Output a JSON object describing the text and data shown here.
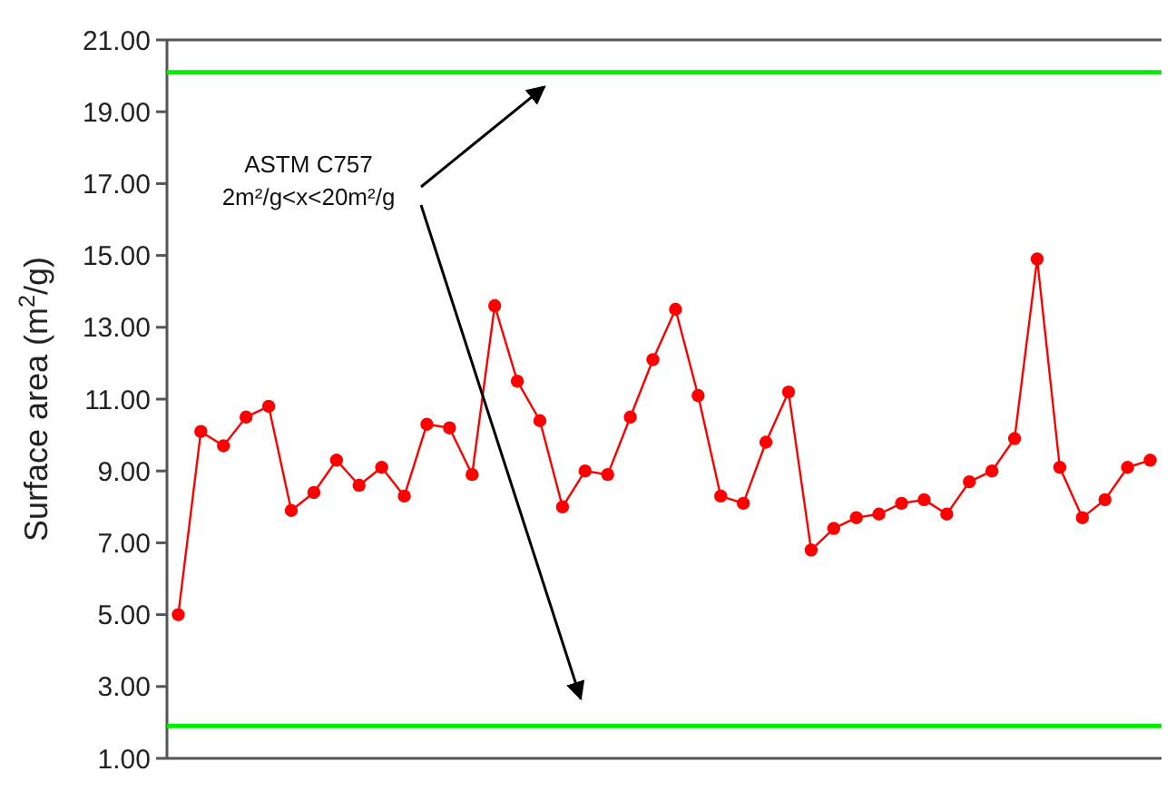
{
  "chart_data": {
    "type": "line",
    "ylabel": "Surface area (m$^{2}$/g)",
    "categories": [
      null,
      null,
      null,
      null,
      null,
      null,
      null,
      null,
      null,
      null,
      null,
      null,
      null,
      null,
      null,
      null,
      null,
      null,
      null,
      null,
      null,
      null,
      null,
      null,
      null,
      null,
      null,
      null,
      null,
      null,
      null,
      null,
      null,
      null,
      null,
      null,
      null,
      null,
      null,
      null,
      null,
      null,
      null,
      null
    ],
    "series": [
      {
        "color": "#ff0000",
        "values": [
          5.0,
          10.1,
          9.7,
          10.5,
          10.8,
          7.9,
          8.4,
          9.3,
          8.6,
          9.1,
          8.3,
          10.3,
          10.2,
          8.9,
          13.6,
          11.5,
          10.4,
          8.0,
          9.0,
          8.9,
          10.5,
          12.1,
          13.5,
          11.1,
          8.3,
          8.1,
          9.8,
          11.2,
          6.8,
          7.4,
          7.7,
          7.8,
          8.1,
          8.2,
          7.8,
          8.7,
          9.0,
          9.9,
          14.9,
          9.1,
          7.7,
          8.2,
          9.1,
          9.3
        ]
      }
    ],
    "ylim": [
      1,
      21
    ],
    "yticks": [
      {
        "value": 1,
        "label": "1.00"
      },
      {
        "value": 3,
        "label": "3.00"
      },
      {
        "value": 5,
        "label": "5.00"
      },
      {
        "value": 7,
        "label": "7.00"
      },
      {
        "value": 9,
        "label": "9.00"
      },
      {
        "value": 11,
        "label": "11.00"
      },
      {
        "value": 13,
        "label": "13.00"
      },
      {
        "value": 15,
        "label": "15.00"
      },
      {
        "value": 17,
        "label": "17.00"
      },
      {
        "value": 19,
        "label": "19.00"
      },
      {
        "value": 21,
        "label": "21.00"
      }
    ],
    "ref_lines": [
      {
        "axis": "y",
        "value": 20.1,
        "color": "#00ee00"
      },
      {
        "axis": "y",
        "value": 1.9,
        "color": "#00ee00"
      }
    ],
    "annotations": [
      "ASTM C757",
      "2m²/g<x<20m²/g"
    ],
    "marker": "circle",
    "grid": false
  }
}
